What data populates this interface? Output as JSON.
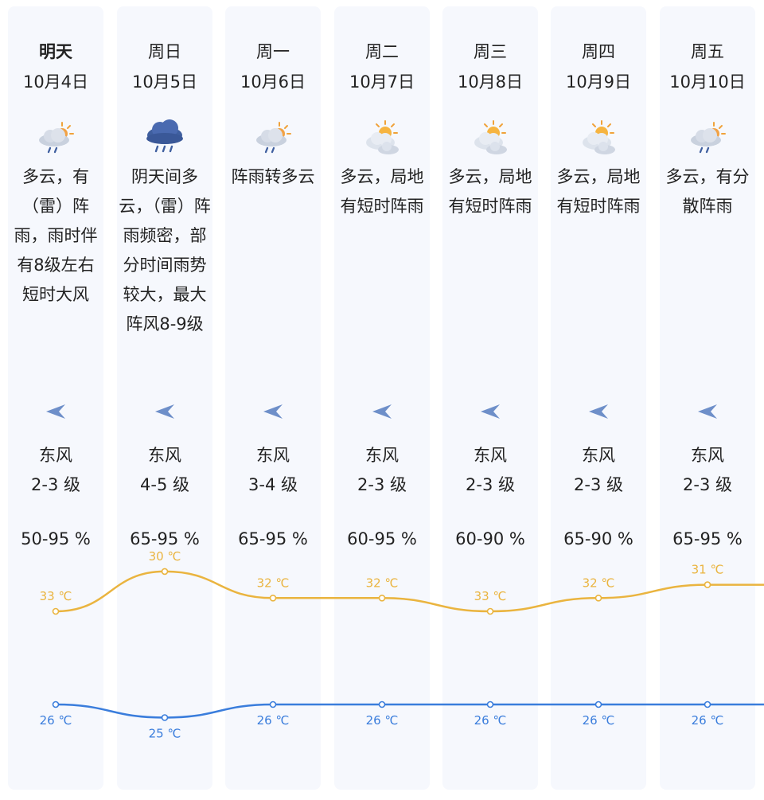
{
  "forecast": {
    "days": [
      {
        "name": "明天",
        "date": "10月4日",
        "icon": "partly-cloudy-rain-icon",
        "desc": "多云，有（雷）阵雨，雨时伴有8级左右短时大风",
        "wind_dir": "东风",
        "wind_lvl": "2-3 级",
        "humidity": "50-95 %",
        "high": 33,
        "low": 26,
        "high_label": "33 ℃",
        "low_label": "26 ℃"
      },
      {
        "name": "周日",
        "date": "10月5日",
        "icon": "overcast-rain-icon",
        "desc": "阴天间多云，（雷）阵雨频密，部分时间雨势较大，最大阵风8-9级",
        "wind_dir": "东风",
        "wind_lvl": "4-5 级",
        "humidity": "65-95 %",
        "high": 30,
        "low": 25,
        "high_label": "30 ℃",
        "low_label": "25 ℃"
      },
      {
        "name": "周一",
        "date": "10月6日",
        "icon": "partly-cloudy-rain-icon",
        "desc": "阵雨转多云",
        "wind_dir": "东风",
        "wind_lvl": "3-4 级",
        "humidity": "65-95 %",
        "high": 32,
        "low": 26,
        "high_label": "32 ℃",
        "low_label": "26 ℃"
      },
      {
        "name": "周二",
        "date": "10月7日",
        "icon": "sun-cloud-icon",
        "desc": "多云，局地有短时阵雨",
        "wind_dir": "东风",
        "wind_lvl": "2-3 级",
        "humidity": "60-95 %",
        "high": 32,
        "low": 26,
        "high_label": "32 ℃",
        "low_label": "26 ℃"
      },
      {
        "name": "周三",
        "date": "10月8日",
        "icon": "sun-cloud-icon",
        "desc": "多云，局地有短时阵雨",
        "wind_dir": "东风",
        "wind_lvl": "2-3 级",
        "humidity": "60-90 %",
        "high": 33,
        "low": 26,
        "high_label": "33 ℃",
        "low_label": "26 ℃"
      },
      {
        "name": "周四",
        "date": "10月9日",
        "icon": "sun-cloud-icon",
        "desc": "多云，局地有短时阵雨",
        "wind_dir": "东风",
        "wind_lvl": "2-3 级",
        "humidity": "65-90 %",
        "high": 32,
        "low": 26,
        "high_label": "32 ℃",
        "low_label": "26 ℃"
      },
      {
        "name": "周五",
        "date": "10月10日",
        "icon": "partly-cloudy-rain-icon",
        "desc": "多云，有分散阵雨",
        "wind_dir": "东风",
        "wind_lvl": "2-3 级",
        "humidity": "65-95 %",
        "high": 31,
        "low": 26,
        "high_label": "31 ℃",
        "low_label": "26 ℃"
      }
    ]
  },
  "colors": {
    "card_bg": "#f6f8fd",
    "high_line": "#eab43f",
    "low_line": "#3a7ddc",
    "wind_arrow": "#6e8fc9"
  }
}
